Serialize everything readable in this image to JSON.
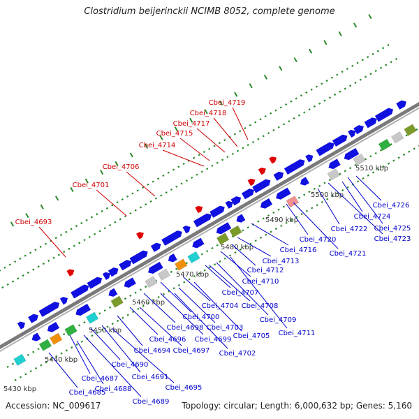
{
  "title": "Clostridium beijerinckii NCIMB 8052, complete genome",
  "footer": {
    "accession": "Accession: NC_009617",
    "summary": "Topology: circular; Length: 6,000,632 bp; Genes: 5,160"
  },
  "colors": {
    "backbone": "#7a7a7a",
    "forward_gene": "#1010e0",
    "reverse_gene": "#1010e0",
    "rna": "#e00000",
    "highlight": "#e00000",
    "label_forward": "#0000cc",
    "label_rna": "#d00000",
    "tick": "#2a8a2a",
    "cds_olive": "#7a9a2a",
    "cds_cyan": "#20d0d0",
    "cds_gray": "#c8c8c8",
    "cds_orange": "#f0900a",
    "cds_pink": "#f09090",
    "cds_green": "#30b040"
  },
  "ticks": [
    {
      "label": "5430 kbp"
    },
    {
      "label": "5440 kbp"
    },
    {
      "label": "5450 kbp"
    },
    {
      "label": "5460 kbp"
    },
    {
      "label": "5470 kbp"
    },
    {
      "label": "5480 kbp"
    },
    {
      "label": "5490 kbp"
    },
    {
      "label": "5500 kbp"
    },
    {
      "label": "5510 kbp"
    }
  ],
  "rna_labels": [
    {
      "name": "Cbei_4693"
    },
    {
      "name": "Cbei_4701"
    },
    {
      "name": "Cbei_4706"
    },
    {
      "name": "Cbei_4714"
    },
    {
      "name": "Cbei_4715"
    },
    {
      "name": "Cbei_4717"
    },
    {
      "name": "Cbei_4718"
    },
    {
      "name": "Cbei_4719"
    }
  ],
  "gene_labels": [
    {
      "name": "Cbei_4685"
    },
    {
      "name": "Cbei_4687"
    },
    {
      "name": "Cbei_4688"
    },
    {
      "name": "Cbei_4689"
    },
    {
      "name": "Cbei_4690"
    },
    {
      "name": "Cbei_4691"
    },
    {
      "name": "Cbei_4694"
    },
    {
      "name": "Cbei_4695"
    },
    {
      "name": "Cbei_4696"
    },
    {
      "name": "Cbei_4697"
    },
    {
      "name": "Cbei_4698"
    },
    {
      "name": "Cbei_4699"
    },
    {
      "name": "Cbei_4700"
    },
    {
      "name": "Cbei_4702"
    },
    {
      "name": "Cbei_4703"
    },
    {
      "name": "Cbei_4704"
    },
    {
      "name": "Cbei_4705"
    },
    {
      "name": "Cbei_4707"
    },
    {
      "name": "Cbei_4708"
    },
    {
      "name": "Cbei_4709"
    },
    {
      "name": "Cbei_4710"
    },
    {
      "name": "Cbei_4711"
    },
    {
      "name": "Cbei_4712"
    },
    {
      "name": "Cbei_4713"
    },
    {
      "name": "Cbei_4716"
    },
    {
      "name": "Cbei_4720"
    },
    {
      "name": "Cbei_4721"
    },
    {
      "name": "Cbei_4722"
    },
    {
      "name": "Cbei_4723"
    },
    {
      "name": "Cbei_4724"
    },
    {
      "name": "Cbei_4725"
    },
    {
      "name": "Cbei_4726"
    }
  ]
}
